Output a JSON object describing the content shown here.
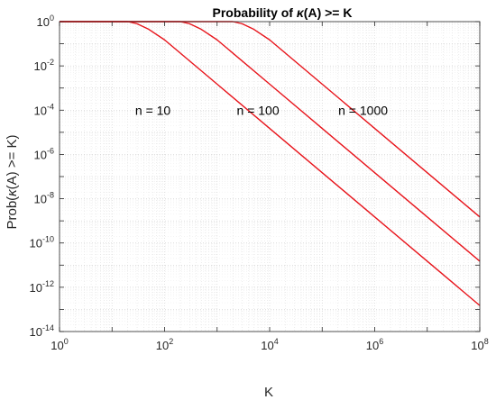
{
  "chart_data": {
    "type": "line",
    "title_parts": {
      "pre": "Probability of ",
      "kappa": "κ",
      "post": "(A) >= K"
    },
    "xlabel": "K",
    "ylabel_parts": {
      "pre": "Prob(",
      "kappa": "κ",
      "post": "(A) >= K)"
    },
    "xscale": "log",
    "yscale": "log",
    "xlim": [
      1,
      100000000
    ],
    "ylim": [
      1e-14,
      1
    ],
    "x_ticks": [
      {
        "base": "10",
        "exp": "0"
      },
      {
        "base": "10",
        "exp": "2"
      },
      {
        "base": "10",
        "exp": "4"
      },
      {
        "base": "10",
        "exp": "6"
      },
      {
        "base": "10",
        "exp": "8"
      }
    ],
    "y_ticks": [
      {
        "base": "10",
        "exp": "0"
      },
      {
        "base": "10",
        "exp": "-2"
      },
      {
        "base": "10",
        "exp": "-4"
      },
      {
        "base": "10",
        "exp": "-6"
      },
      {
        "base": "10",
        "exp": "-8"
      },
      {
        "base": "10",
        "exp": "-10"
      },
      {
        "base": "10",
        "exp": "-12"
      },
      {
        "base": "10",
        "exp": "-14"
      }
    ],
    "grid": true,
    "series": [
      {
        "label": "n = 10",
        "color": "#e8141b",
        "x": [
          1,
          10,
          20,
          30,
          50,
          100,
          1000,
          10000,
          100000,
          1000000,
          10000000,
          100000000
        ],
        "y": [
          1,
          1,
          1,
          0.8,
          0.45,
          0.15,
          0.0015,
          1.5e-05,
          1.5e-07,
          1.5e-09,
          1.5e-11,
          1.5e-13
        ]
      },
      {
        "label": "n = 100",
        "color": "#e8141b",
        "x": [
          1,
          100,
          200,
          300,
          500,
          1000,
          10000,
          100000,
          1000000,
          10000000,
          100000000
        ],
        "y": [
          1,
          1,
          1,
          0.8,
          0.45,
          0.15,
          0.0015,
          1.5e-05,
          1.5e-07,
          1.5e-09,
          1.5e-11
        ]
      },
      {
        "label": "n = 1000",
        "color": "#e8141b",
        "x": [
          1,
          1000,
          2000,
          3000,
          5000,
          10000,
          100000,
          1000000,
          10000000,
          100000000
        ],
        "y": [
          1,
          1,
          1,
          0.8,
          0.45,
          0.15,
          0.0015,
          1.5e-05,
          1.5e-07,
          1.5e-09
        ]
      }
    ],
    "annotations": [
      {
        "text": "n = 10",
        "x": 60,
        "y": 0.0001
      },
      {
        "text": "n = 100",
        "x": 6000,
        "y": 0.0001
      },
      {
        "text": "n = 1000",
        "x": 600000,
        "y": 0.0001
      }
    ]
  }
}
